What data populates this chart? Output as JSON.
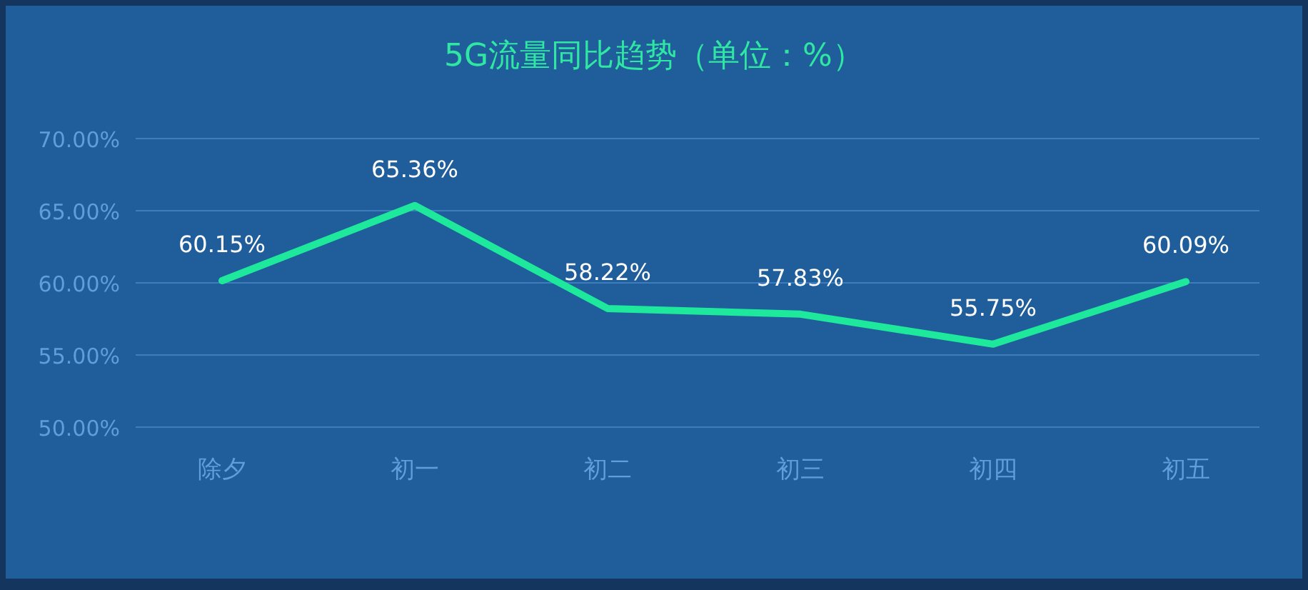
{
  "chart_data": {
    "type": "line",
    "title": "5G流量同比趋势（单位：%）",
    "categories": [
      "除夕",
      "初一",
      "初二",
      "初三",
      "初四",
      "初五"
    ],
    "series": [
      {
        "color": "#1ee89c",
        "values": [
          60.15,
          65.36,
          58.22,
          57.83,
          55.75,
          60.09
        ],
        "value_labels": [
          "60.15%",
          "65.36%",
          "58.22%",
          "57.83%",
          "55.75%",
          "60.09%"
        ]
      }
    ],
    "ylim": [
      50,
      70
    ],
    "yticks": [
      {
        "value": 50,
        "label": "50.00%"
      },
      {
        "value": 55,
        "label": "55.00%"
      },
      {
        "value": 60,
        "label": "60.00%"
      },
      {
        "value": 65,
        "label": "65.00%"
      },
      {
        "value": 70,
        "label": "70.00%"
      }
    ],
    "grid": "y",
    "marker": "none",
    "line_style": "solid"
  }
}
